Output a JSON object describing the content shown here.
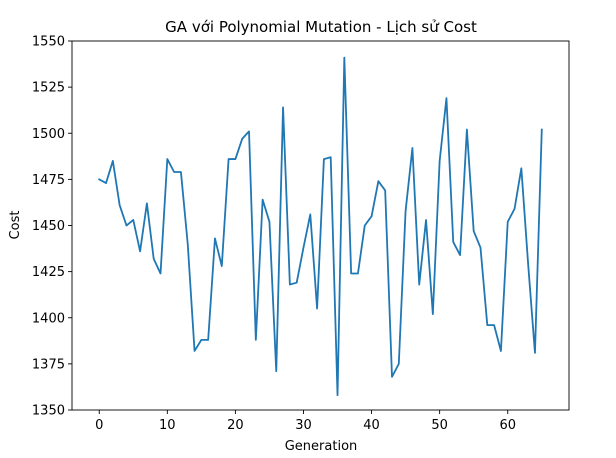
{
  "chart_data": {
    "type": "line",
    "title": "GA với Polynomial Mutation - Lịch sử Cost",
    "xlabel": "Generation",
    "ylabel": "Cost",
    "xlim": [
      -4,
      69
    ],
    "ylim": [
      1350,
      1550
    ],
    "xticks": [
      0,
      10,
      20,
      30,
      40,
      50,
      60
    ],
    "yticks": [
      1350,
      1375,
      1400,
      1425,
      1450,
      1475,
      1500,
      1525,
      1550
    ],
    "grid": false,
    "legend": "none",
    "line_color": "#1f77b4",
    "series": [
      {
        "x": [
          0,
          1,
          2,
          3,
          4,
          5,
          6,
          7,
          8,
          9,
          10,
          11,
          12,
          13,
          14,
          15,
          16,
          17,
          18,
          19,
          20,
          21,
          22,
          23,
          24,
          25,
          26,
          27,
          28,
          29,
          30,
          31,
          32,
          33,
          34,
          35,
          36,
          37,
          38,
          39,
          40,
          41,
          42,
          43,
          44,
          45,
          46,
          47,
          48,
          49,
          50,
          51,
          52,
          53,
          54,
          55,
          56,
          57,
          58,
          59,
          60,
          61,
          62,
          63,
          64,
          65
        ],
        "values": [
          1475,
          1473,
          1485,
          1461,
          1450,
          1453,
          1436,
          1462,
          1432,
          1424,
          1486,
          1479,
          1479,
          1440,
          1382,
          1388,
          1388,
          1443,
          1428,
          1486,
          1486,
          1497,
          1501,
          1388,
          1464,
          1452,
          1371,
          1514,
          1418,
          1419,
          1438,
          1456,
          1405,
          1486,
          1487,
          1358,
          1541,
          1424,
          1424,
          1450,
          1455,
          1474,
          1469,
          1368,
          1375,
          1458,
          1492,
          1418,
          1453,
          1402,
          1485,
          1519,
          1441,
          1434,
          1502,
          1447,
          1438,
          1396,
          1396,
          1382,
          1452,
          1459,
          1481,
          1429,
          1381,
          1502
        ]
      }
    ]
  }
}
